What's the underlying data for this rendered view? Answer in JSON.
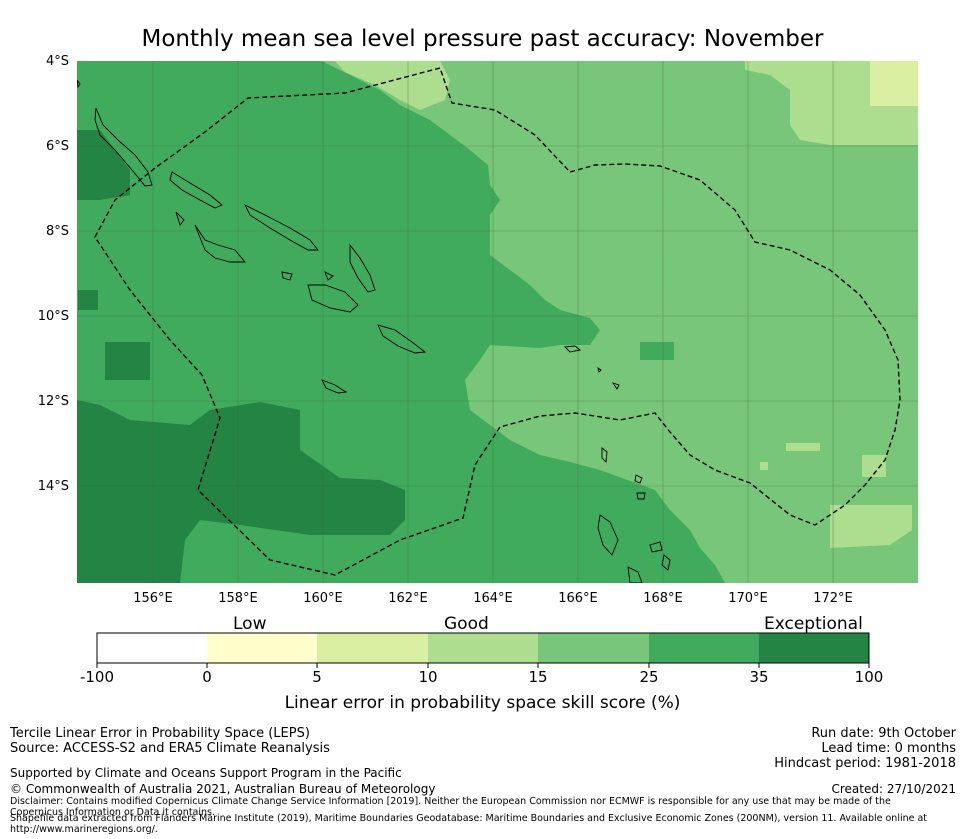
{
  "title": "Monthly mean sea level pressure past accuracy: November",
  "map": {
    "lat_labels": [
      "4°S",
      "6°S",
      "8°S",
      "10°S",
      "12°S",
      "14°S"
    ],
    "lon_labels": [
      "156°E",
      "158°E",
      "160°E",
      "162°E",
      "164°E",
      "166°E",
      "168°E",
      "170°E",
      "172°E"
    ],
    "lat_range": [
      -16.3,
      -4.0
    ],
    "lon_range": [
      154.1,
      173.9
    ],
    "gridlines": true
  },
  "colorbar": {
    "category_labels": [
      "Low",
      "Good",
      "Exceptional"
    ],
    "ticks": [
      "-100",
      "0",
      "5",
      "10",
      "15",
      "25",
      "35",
      "100"
    ],
    "colors": [
      "#ffffff",
      "#ffffcc",
      "#d9f0a3",
      "#addd8e",
      "#78c679",
      "#41ab5d",
      "#238443"
    ],
    "title": "Linear error in probability space skill score (%)"
  },
  "footer": {
    "left_line1": "Tercile Linear Error in Probability Space (LEPS)",
    "left_line2": "Source: ACCESS-S2 and ERA5 Climate Reanalysis",
    "supported": "Supported by Climate and Oceans Support Program in the Pacific",
    "copyright": "© Commonwealth of Australia 2021, Australian Bureau of Meteorology",
    "run_date": "Run date: 9th October",
    "lead_time": "Lead time: 0 months",
    "hindcast": "Hindcast period: 1981-2018",
    "created": "Created: 27/10/2021",
    "disclaimer": "Disclaimer: Contains modified Copernicus Climate Change Service Information [2019]. Neither the European Commission nor ECMWF is responsible for any use that may be made of the Copernicus Information or Data it contains.",
    "shapefile": "Shapefile data extracted from Flanders Marine Institute (2019), Maritime Boundaries Geodatabase: Maritime Boundaries and Exclusive Economic Zones (200NM), version 11. Available online at http://www.marineregions.org/."
  }
}
